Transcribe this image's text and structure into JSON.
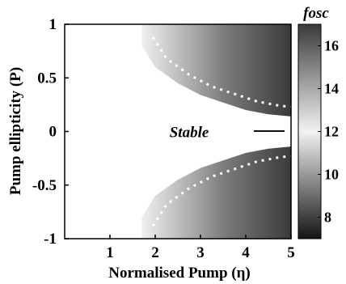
{
  "chart_data": {
    "type": "heatmap",
    "xlabel": "Normalised Pump (η)",
    "ylabel": "Pump ellipticity (P)",
    "xlim": [
      0,
      5
    ],
    "ylim": [
      -1,
      1
    ],
    "xticks": [
      1,
      2,
      3,
      4,
      5
    ],
    "yticks": [
      1,
      0.5,
      0,
      -0.5,
      -1
    ],
    "colorbar": {
      "title": "fosc",
      "range": [
        7,
        17
      ],
      "ticks": [
        16,
        14,
        12,
        10,
        8
      ],
      "colormap": "gray"
    },
    "annotations": [
      {
        "text": "Stable",
        "x": 2.75,
        "y": 0
      }
    ],
    "stability_boundary": [
      {
        "eta": 1.7,
        "P": 0.8
      },
      {
        "eta": 2.0,
        "P": 0.6
      },
      {
        "eta": 2.5,
        "P": 0.45
      },
      {
        "eta": 3.0,
        "P": 0.34
      },
      {
        "eta": 3.5,
        "P": 0.27
      },
      {
        "eta": 4.0,
        "P": 0.2
      },
      {
        "eta": 4.5,
        "P": 0.16
      },
      {
        "eta": 5.0,
        "P": 0.14
      }
    ],
    "field_samples_eta": [
      2,
      3,
      4,
      5
    ],
    "field_samples_fosc_at_P0_5": [
      12,
      13,
      14,
      15
    ]
  }
}
